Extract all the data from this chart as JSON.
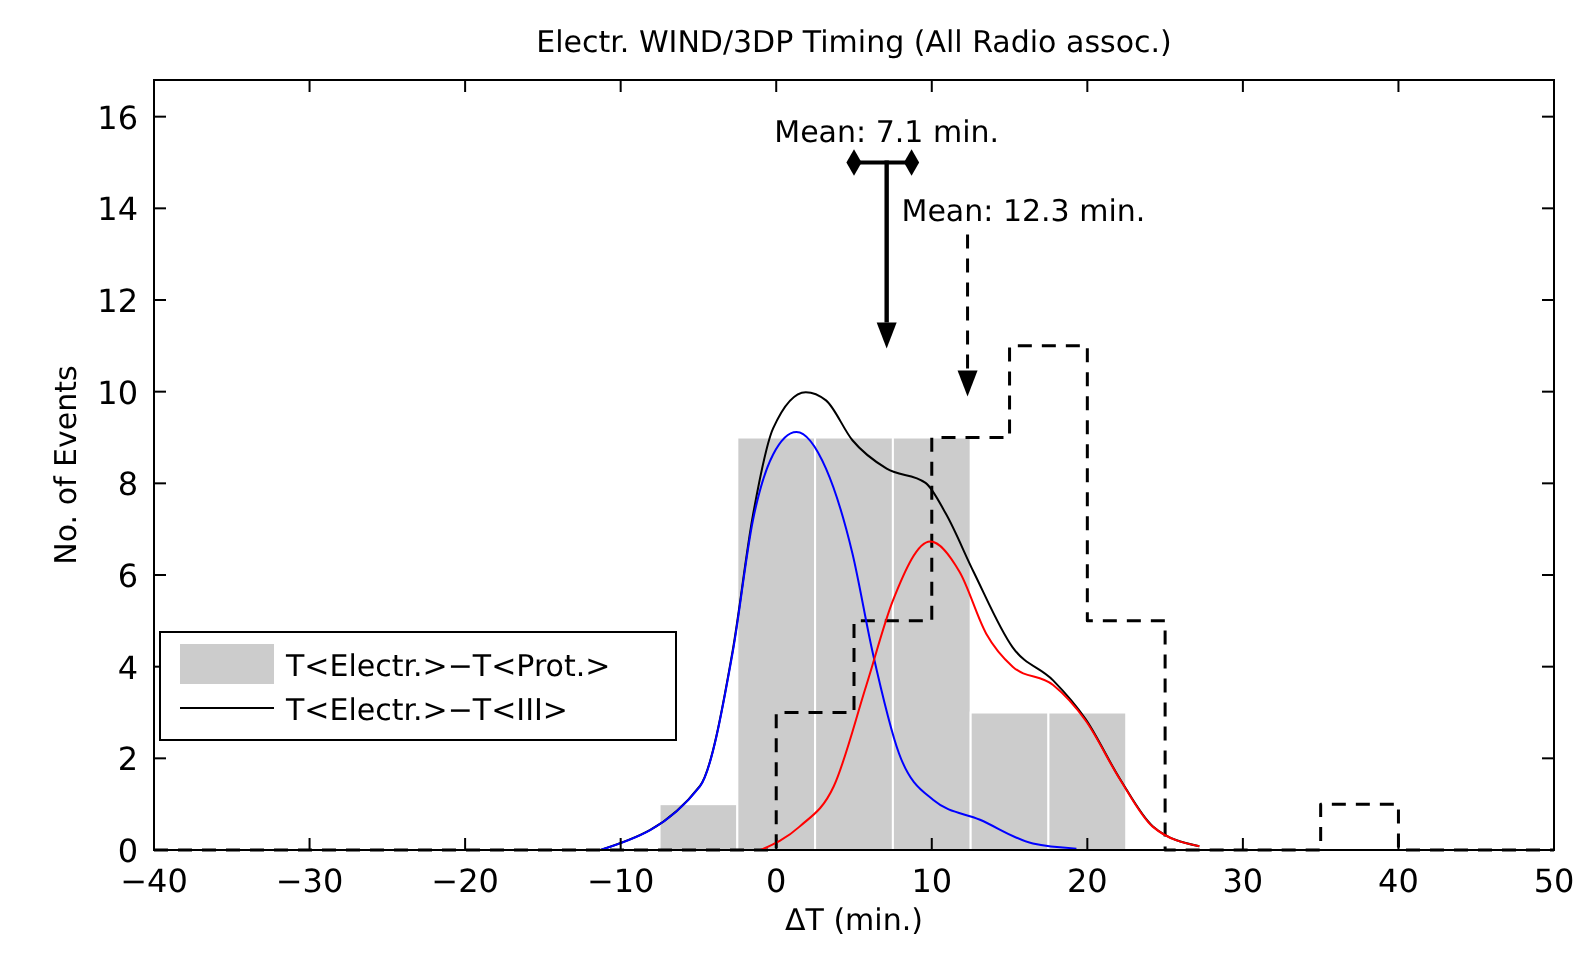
{
  "chart_data": {
    "type": "histogram",
    "title": "Electr. WIND/3DP Timing (All Radio assoc.)",
    "xlabel": "ΔT (min.)",
    "ylabel": "No. of Events",
    "xlim": [
      -40,
      50
    ],
    "xticks": [
      -40,
      -30,
      -20,
      -10,
      0,
      10,
      20,
      30,
      40,
      50
    ],
    "ylim": [
      0,
      16.8
    ],
    "yticks": [
      0,
      2,
      4,
      6,
      8,
      10,
      12,
      14,
      16
    ],
    "legend": "bottom left",
    "grid": false,
    "series": [
      {
        "name": "T<Electr.>−T<Prot.>",
        "color": "#cccccc",
        "bins": [
          -7.5,
          -2.5,
          2.5,
          7.5,
          12.5,
          17.5,
          22.5
        ],
        "values": [
          1,
          9,
          9,
          9,
          3,
          3
        ]
      },
      {
        "type": "step",
        "color": "#000000",
        "line_style": "dashed",
        "x": [
          -40,
          0,
          5,
          10,
          15,
          20,
          25,
          35,
          40,
          50
        ],
        "values": [
          0,
          3,
          5,
          9,
          11,
          5,
          0,
          1,
          0,
          0
        ]
      },
      {
        "type": "line",
        "name": "T<Electr.>−T<III>",
        "color": "#000000",
        "x": [
          -11.3,
          -4.9,
          -2.8,
          -1.5,
          -0.2,
          1.9,
          3.2,
          4.9,
          7.1,
          9.6,
          10.9,
          12.7,
          15.2,
          17.8,
          19.9,
          22.1,
          24.2,
          27.2
        ],
        "values": [
          0,
          1.4,
          4.35,
          7.3,
          9.2,
          9.99,
          9.81,
          8.94,
          8.32,
          8.01,
          7.34,
          6.06,
          4.42,
          3.7,
          2.85,
          1.55,
          0.52,
          0.08
        ]
      },
      {
        "type": "line",
        "color": "#0000ff",
        "x": [
          -11.3,
          -4.9,
          -2.8,
          -1.5,
          -0.2,
          1.3,
          3.2,
          4.9,
          6.2,
          7.9,
          10.1,
          13.1,
          16.5,
          19.3
        ],
        "values": [
          0,
          1.39,
          4.31,
          7.19,
          8.63,
          9.12,
          8.32,
          6.47,
          4.31,
          2.1,
          1.09,
          0.66,
          0.14,
          0.03
        ]
      },
      {
        "type": "line",
        "color": "#ff0000",
        "x": [
          -1,
          1.5,
          3.7,
          5.8,
          7.5,
          9.9,
          11.8,
          13.5,
          15.2,
          17.8,
          19.9,
          22.1,
          24.2,
          27.2
        ],
        "values": [
          0,
          0.51,
          1.39,
          3.6,
          5.44,
          6.73,
          6.06,
          4.72,
          4.0,
          3.6,
          2.82,
          1.54,
          0.51,
          0.08
        ]
      },
      {
        "type": "line",
        "color": "#000000",
        "marker": "diamond",
        "x": [
          5.0,
          8.7
        ],
        "values": [
          15.0,
          15.0
        ]
      },
      {
        "type": "scatter",
        "color": "#000000",
        "marker": "triangle",
        "x": [
          7.1,
          12.3
        ],
        "values": [
          11.25,
          10.2
        ]
      }
    ],
    "annotations": [
      {
        "text": "Mean: 7.1 min.",
        "x": 7.1,
        "y": 11.25
      },
      {
        "text": "Mean: 12.3 min.",
        "x": 12.3,
        "y": 10.2
      }
    ]
  }
}
